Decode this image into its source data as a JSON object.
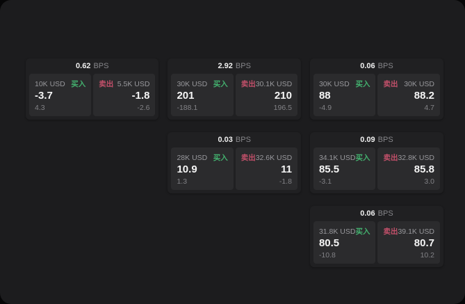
{
  "window": {
    "surface_color": "#1c1c1e",
    "backdrop_color": "#060607"
  },
  "labels": {
    "bps_unit": "BPS",
    "buy": "买入",
    "sell": "卖出"
  },
  "colors": {
    "card_bg": "#202022",
    "panel_bg": "#2b2b2d",
    "text_primary": "#f5f5f5",
    "text_muted": "#98989c",
    "buy_green": "#43b06e",
    "sell_red": "#c2506a"
  },
  "cards": [
    {
      "bps": "0.62",
      "buy": {
        "amount": "10K USD",
        "price": "-3.7",
        "delta": "4.3"
      },
      "sell": {
        "amount": "5.5K USD",
        "price": "-1.8",
        "delta": "-2.6"
      }
    },
    {
      "bps": "2.92",
      "buy": {
        "amount": "30K USD",
        "price": "201",
        "delta": "-188.1"
      },
      "sell": {
        "amount": "30.1K USD",
        "price": "210",
        "delta": "196.5"
      }
    },
    {
      "bps": "0.06",
      "buy": {
        "amount": "30K USD",
        "price": "88",
        "delta": "-4.9"
      },
      "sell": {
        "amount": "30K USD",
        "price": "88.2",
        "delta": "4.7"
      }
    },
    {
      "bps": "0.03",
      "buy": {
        "amount": "28K USD",
        "price": "10.9",
        "delta": "1.3"
      },
      "sell": {
        "amount": "32.6K USD",
        "price": "11",
        "delta": "-1.8"
      }
    },
    {
      "bps": "0.09",
      "buy": {
        "amount": "34.1K USD",
        "price": "85.5",
        "delta": "-3.1"
      },
      "sell": {
        "amount": "32.8K USD",
        "price": "85.8",
        "delta": "3.0"
      }
    },
    {
      "bps": "0.06",
      "buy": {
        "amount": "31.8K USD",
        "price": "80.5",
        "delta": "-10.8"
      },
      "sell": {
        "amount": "39.1K USD",
        "price": "80.7",
        "delta": "10.2"
      }
    }
  ]
}
